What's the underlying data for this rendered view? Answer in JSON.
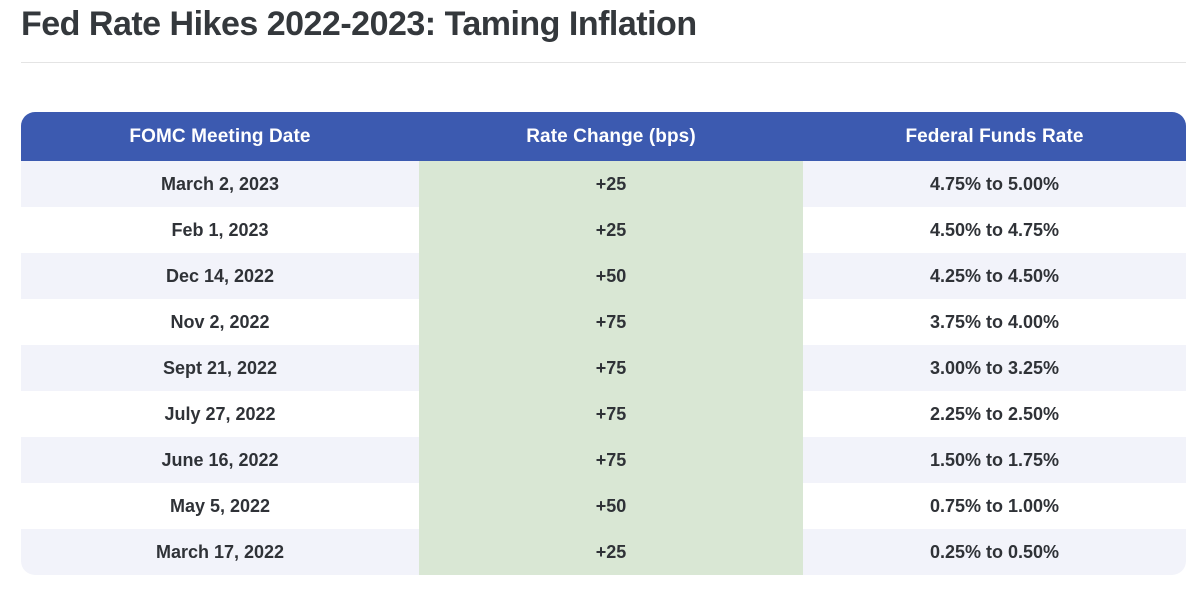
{
  "title": "Fed Rate Hikes 2022-2023: Taming Inflation",
  "colors": {
    "header_bg": "#3c5ab0",
    "header_text": "#ffffff",
    "row_alt_bg": "#f2f3fa",
    "row_bg": "#ffffff",
    "change_col_bg": "#d9e7d4",
    "title_text": "#34383c",
    "cell_text": "#2f3237",
    "divider": "#e4e4e4"
  },
  "chart_data": {
    "type": "table",
    "title": "Fed Rate Hikes 2022-2023: Taming Inflation",
    "columns": [
      "FOMC Meeting Date",
      "Rate Change (bps)",
      "Federal Funds Rate"
    ],
    "rows": [
      {
        "date": "March 2, 2023",
        "change_bps": "+25",
        "funds_rate": "4.75% to 5.00%"
      },
      {
        "date": "Feb 1, 2023",
        "change_bps": "+25",
        "funds_rate": "4.50% to 4.75%"
      },
      {
        "date": "Dec 14, 2022",
        "change_bps": "+50",
        "funds_rate": "4.25% to 4.50%"
      },
      {
        "date": "Nov 2, 2022",
        "change_bps": "+75",
        "funds_rate": "3.75% to 4.00%"
      },
      {
        "date": "Sept 21, 2022",
        "change_bps": "+75",
        "funds_rate": "3.00% to 3.25%"
      },
      {
        "date": "July 27, 2022",
        "change_bps": "+75",
        "funds_rate": "2.25% to 2.50%"
      },
      {
        "date": "June 16, 2022",
        "change_bps": "+75",
        "funds_rate": "1.50% to 1.75%"
      },
      {
        "date": "May 5, 2022",
        "change_bps": "+50",
        "funds_rate": "0.75% to 1.00%"
      },
      {
        "date": "March 17, 2022",
        "change_bps": "+25",
        "funds_rate": "0.25% to 0.50%"
      }
    ]
  }
}
